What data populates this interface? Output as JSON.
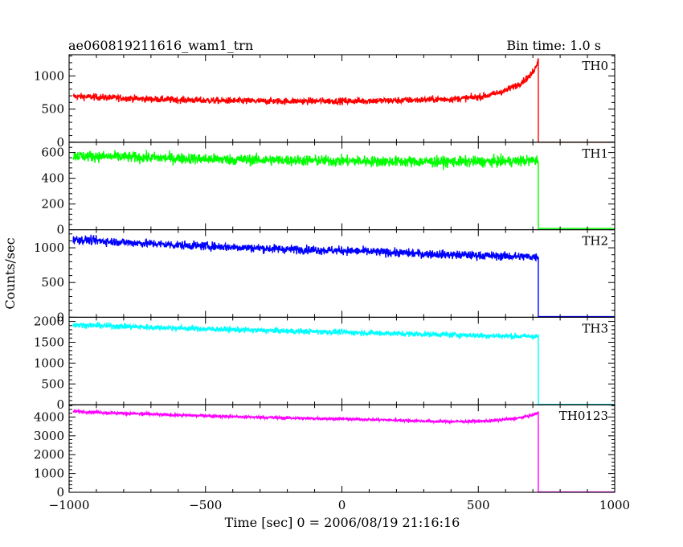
{
  "header": {
    "title": "ae060819211616_wam1_trn",
    "bin_time": "Bin time: 1.0 s"
  },
  "chart_data": {
    "type": "line",
    "xlabel": "Time [sec] 0 = 2006/08/19 21:16:16",
    "ylabel": "Counts/sec",
    "xlim": [
      -1000,
      1000
    ],
    "x_ticks": [
      -1000,
      -500,
      0,
      500,
      1000
    ],
    "x_tick_labels": [
      "−1000",
      "−500",
      "0",
      "500",
      "1000"
    ],
    "grid": false,
    "panels": [
      {
        "name": "TH0",
        "color": "#ff0000",
        "ylim": [
          0,
          1320
        ],
        "y_ticks": [
          0,
          500,
          1000
        ],
        "y_tick_labels": [
          "0",
          "500",
          "1000"
        ],
        "drop_time": 720,
        "after_drop_value": 0,
        "noise_amplitude": 45,
        "points": [
          [
            -985,
            690
          ],
          [
            -900,
            680
          ],
          [
            -800,
            665
          ],
          [
            -700,
            650
          ],
          [
            -600,
            640
          ],
          [
            -500,
            630
          ],
          [
            -400,
            625
          ],
          [
            -300,
            620
          ],
          [
            -200,
            620
          ],
          [
            -100,
            620
          ],
          [
            0,
            620
          ],
          [
            100,
            625
          ],
          [
            200,
            630
          ],
          [
            300,
            640
          ],
          [
            400,
            650
          ],
          [
            500,
            680
          ],
          [
            550,
            720
          ],
          [
            600,
            780
          ],
          [
            650,
            880
          ],
          [
            690,
            1000
          ],
          [
            710,
            1130
          ],
          [
            720,
            1260
          ]
        ]
      },
      {
        "name": "TH1",
        "color": "#00ff00",
        "ylim": [
          0,
          680
        ],
        "y_ticks": [
          0,
          200,
          400,
          600
        ],
        "y_tick_labels": [
          "0",
          "200",
          "400",
          "600"
        ],
        "drop_time": 720,
        "after_drop_value": 10,
        "noise_amplitude": 38,
        "points": [
          [
            -985,
            575
          ],
          [
            -800,
            565
          ],
          [
            -600,
            555
          ],
          [
            -400,
            545
          ],
          [
            -200,
            540
          ],
          [
            0,
            535
          ],
          [
            200,
            530
          ],
          [
            400,
            528
          ],
          [
            600,
            530
          ],
          [
            720,
            540
          ]
        ]
      },
      {
        "name": "TH2",
        "color": "#0000ff",
        "ylim": [
          0,
          1260
        ],
        "y_ticks": [
          0,
          500,
          1000
        ],
        "y_tick_labels": [
          "0",
          "500",
          "1000"
        ],
        "drop_time": 720,
        "after_drop_value": 10,
        "noise_amplitude": 55,
        "points": [
          [
            -985,
            1120
          ],
          [
            -800,
            1080
          ],
          [
            -600,
            1040
          ],
          [
            -400,
            1010
          ],
          [
            -200,
            980
          ],
          [
            0,
            960
          ],
          [
            200,
            930
          ],
          [
            400,
            900
          ],
          [
            600,
            880
          ],
          [
            720,
            870
          ]
        ]
      },
      {
        "name": "TH3",
        "color": "#00ffff",
        "ylim": [
          0,
          2100
        ],
        "y_ticks": [
          0,
          500,
          1000,
          1500,
          2000
        ],
        "y_tick_labels": [
          "0",
          "500",
          "1000",
          "1500",
          "2000"
        ],
        "drop_time": 720,
        "after_drop_value": 10,
        "noise_amplitude": 60,
        "points": [
          [
            -985,
            1920
          ],
          [
            -800,
            1880
          ],
          [
            -600,
            1840
          ],
          [
            -400,
            1800
          ],
          [
            -200,
            1770
          ],
          [
            0,
            1740
          ],
          [
            200,
            1710
          ],
          [
            400,
            1680
          ],
          [
            600,
            1650
          ],
          [
            720,
            1640
          ]
        ]
      },
      {
        "name": "TH0123",
        "color": "#ff00ff",
        "ylim": [
          0,
          4650
        ],
        "y_ticks": [
          0,
          1000,
          2000,
          3000,
          4000
        ],
        "y_tick_labels": [
          "0",
          "1000",
          "2000",
          "3000",
          "4000"
        ],
        "drop_time": 720,
        "after_drop_value": 20,
        "noise_amplitude": 70,
        "points": [
          [
            -985,
            4300
          ],
          [
            -800,
            4200
          ],
          [
            -600,
            4100
          ],
          [
            -400,
            4020
          ],
          [
            -200,
            3950
          ],
          [
            0,
            3900
          ],
          [
            200,
            3830
          ],
          [
            350,
            3760
          ],
          [
            450,
            3760
          ],
          [
            550,
            3800
          ],
          [
            650,
            3950
          ],
          [
            700,
            4100
          ],
          [
            720,
            4250
          ]
        ]
      }
    ]
  }
}
